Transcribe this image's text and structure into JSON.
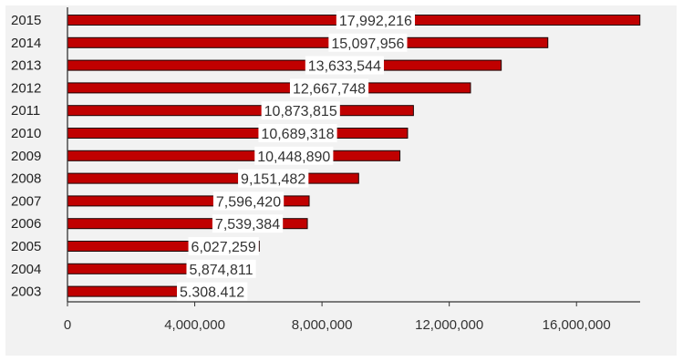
{
  "chart_data": {
    "type": "bar",
    "orientation": "horizontal",
    "categories": [
      "2015",
      "2014",
      "2013",
      "2012",
      "2011",
      "2010",
      "2009",
      "2008",
      "2007",
      "2006",
      "2005",
      "2004",
      "2003"
    ],
    "values": [
      17992216,
      15097956,
      13633544,
      12667748,
      10873815,
      10689318,
      10448890,
      9151482,
      7596420,
      7539384,
      6027259,
      5874811,
      5308412
    ],
    "data_labels": [
      "17,992,216",
      "15,097,956",
      "13,633,544",
      "12,667,748",
      "10,873,815",
      "10,689,318",
      "10,448,890",
      "9,151,482",
      "7,596,420",
      "7,539,384",
      "6,027,259",
      "5,874,811",
      "5.308.412"
    ],
    "xlim": [
      0,
      18000000
    ],
    "x_ticks": [
      0,
      4000000,
      8000000,
      12000000,
      16000000
    ],
    "x_tick_labels": [
      "0",
      "4,000,000",
      "8,000,000",
      "12,000,000",
      "16,000,000"
    ],
    "bar_color": "#c00000",
    "bar_edge_color": "#1a0000",
    "label_background": "#ffffff",
    "grid": false,
    "legend": "none"
  }
}
